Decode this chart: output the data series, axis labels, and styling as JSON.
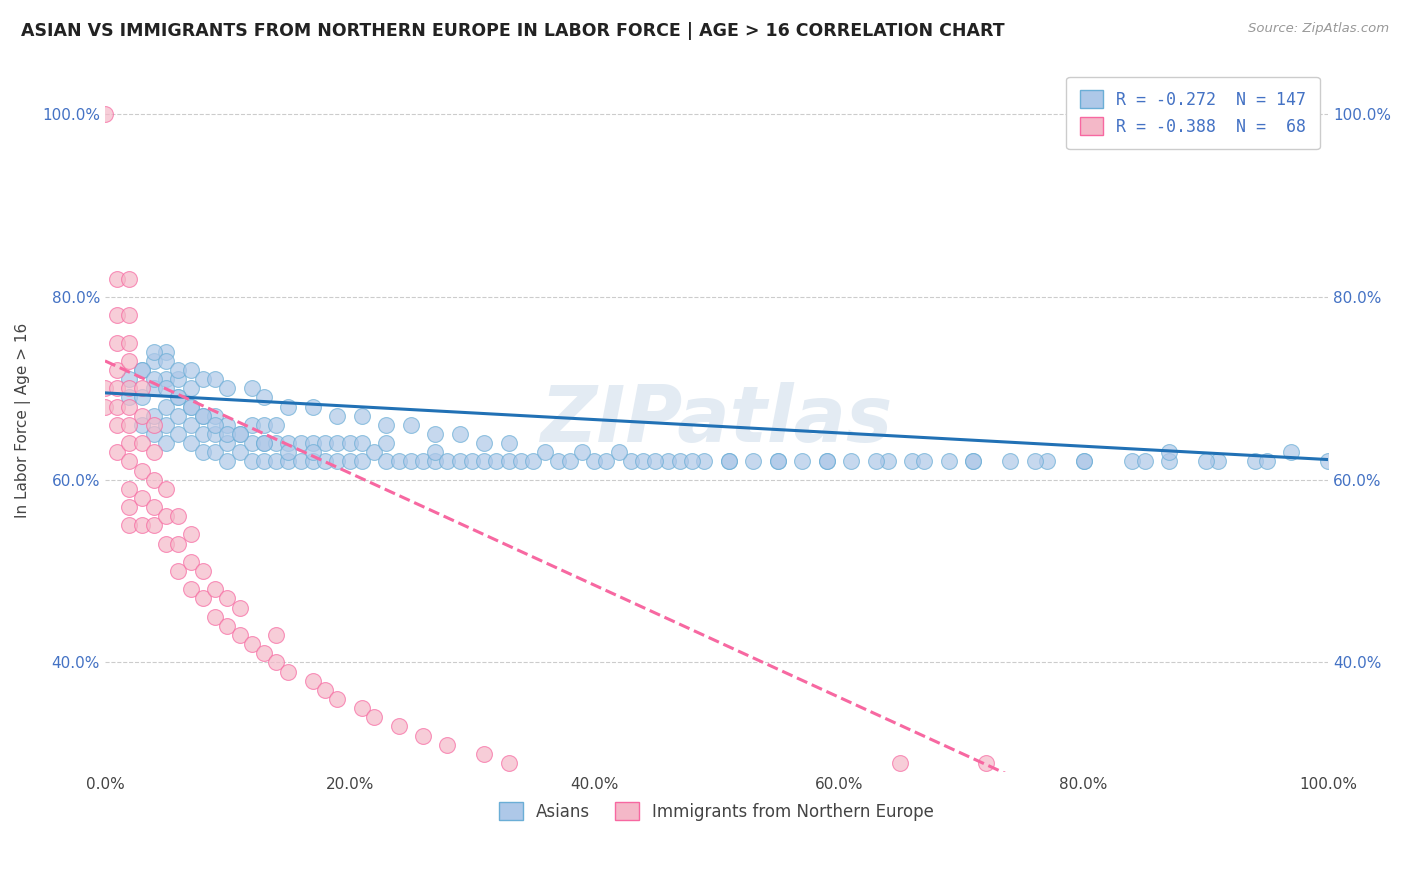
{
  "title": "ASIAN VS IMMIGRANTS FROM NORTHERN EUROPE IN LABOR FORCE | AGE > 16 CORRELATION CHART",
  "source": "Source: ZipAtlas.com",
  "ylabel": "In Labor Force | Age > 16",
  "xlim": [
    0.0,
    1.0
  ],
  "ylim": [
    0.28,
    1.05
  ],
  "x_ticks": [
    0.0,
    0.2,
    0.4,
    0.6,
    0.8,
    1.0
  ],
  "x_tick_labels": [
    "0.0%",
    "20.0%",
    "40.0%",
    "60.0%",
    "80.0%",
    "100.0%"
  ],
  "y_tick_labels": [
    "40.0%",
    "60.0%",
    "80.0%",
    "100.0%"
  ],
  "y_ticks": [
    0.4,
    0.6,
    0.8,
    1.0
  ],
  "blue_R": "-0.272",
  "blue_N": "147",
  "pink_R": "-0.388",
  "pink_N": " 68",
  "blue_color": "#aec8e8",
  "pink_color": "#f4b8c8",
  "blue_edge_color": "#6baed6",
  "pink_edge_color": "#f768a1",
  "blue_line_color": "#2171b5",
  "pink_line_color": "#f768a1",
  "watermark": "ZIPatlas",
  "legend_labels": [
    "Asians",
    "Immigrants from Northern Europe"
  ],
  "background_color": "#ffffff",
  "grid_color": "#cccccc",
  "blue_scatter_x": [
    0.02,
    0.02,
    0.03,
    0.03,
    0.03,
    0.04,
    0.04,
    0.04,
    0.04,
    0.05,
    0.05,
    0.05,
    0.05,
    0.05,
    0.06,
    0.06,
    0.06,
    0.06,
    0.07,
    0.07,
    0.07,
    0.07,
    0.08,
    0.08,
    0.08,
    0.09,
    0.09,
    0.09,
    0.1,
    0.1,
    0.1,
    0.11,
    0.11,
    0.12,
    0.12,
    0.12,
    0.13,
    0.13,
    0.13,
    0.14,
    0.14,
    0.14,
    0.15,
    0.15,
    0.16,
    0.16,
    0.17,
    0.17,
    0.18,
    0.18,
    0.19,
    0.19,
    0.2,
    0.2,
    0.21,
    0.21,
    0.22,
    0.23,
    0.23,
    0.24,
    0.25,
    0.26,
    0.27,
    0.27,
    0.28,
    0.29,
    0.3,
    0.31,
    0.32,
    0.33,
    0.34,
    0.35,
    0.37,
    0.38,
    0.4,
    0.41,
    0.43,
    0.44,
    0.46,
    0.47,
    0.49,
    0.51,
    0.53,
    0.55,
    0.57,
    0.59,
    0.61,
    0.64,
    0.66,
    0.69,
    0.71,
    0.74,
    0.77,
    0.8,
    0.84,
    0.87,
    0.87,
    0.91,
    0.94,
    0.97,
    0.04,
    0.05,
    0.06,
    0.07,
    0.08,
    0.09,
    0.1,
    0.12,
    0.13,
    0.15,
    0.17,
    0.19,
    0.21,
    0.23,
    0.25,
    0.27,
    0.29,
    0.31,
    0.33,
    0.36,
    0.39,
    0.42,
    0.45,
    0.48,
    0.51,
    0.55,
    0.59,
    0.63,
    0.67,
    0.71,
    0.76,
    0.8,
    0.85,
    0.9,
    0.95,
    1.0,
    0.03,
    0.04,
    0.05,
    0.06,
    0.07,
    0.08,
    0.09,
    0.1,
    0.11,
    0.13,
    0.15,
    0.17
  ],
  "blue_scatter_y": [
    0.69,
    0.71,
    0.66,
    0.69,
    0.72,
    0.65,
    0.67,
    0.7,
    0.73,
    0.64,
    0.66,
    0.68,
    0.71,
    0.74,
    0.65,
    0.67,
    0.69,
    0.71,
    0.64,
    0.66,
    0.68,
    0.7,
    0.63,
    0.65,
    0.67,
    0.63,
    0.65,
    0.67,
    0.62,
    0.64,
    0.66,
    0.63,
    0.65,
    0.62,
    0.64,
    0.66,
    0.62,
    0.64,
    0.66,
    0.62,
    0.64,
    0.66,
    0.62,
    0.64,
    0.62,
    0.64,
    0.62,
    0.64,
    0.62,
    0.64,
    0.62,
    0.64,
    0.62,
    0.64,
    0.62,
    0.64,
    0.63,
    0.62,
    0.64,
    0.62,
    0.62,
    0.62,
    0.62,
    0.63,
    0.62,
    0.62,
    0.62,
    0.62,
    0.62,
    0.62,
    0.62,
    0.62,
    0.62,
    0.62,
    0.62,
    0.62,
    0.62,
    0.62,
    0.62,
    0.62,
    0.62,
    0.62,
    0.62,
    0.62,
    0.62,
    0.62,
    0.62,
    0.62,
    0.62,
    0.62,
    0.62,
    0.62,
    0.62,
    0.62,
    0.62,
    0.62,
    0.63,
    0.62,
    0.62,
    0.63,
    0.74,
    0.73,
    0.72,
    0.72,
    0.71,
    0.71,
    0.7,
    0.7,
    0.69,
    0.68,
    0.68,
    0.67,
    0.67,
    0.66,
    0.66,
    0.65,
    0.65,
    0.64,
    0.64,
    0.63,
    0.63,
    0.63,
    0.62,
    0.62,
    0.62,
    0.62,
    0.62,
    0.62,
    0.62,
    0.62,
    0.62,
    0.62,
    0.62,
    0.62,
    0.62,
    0.62,
    0.72,
    0.71,
    0.7,
    0.69,
    0.68,
    0.67,
    0.66,
    0.65,
    0.65,
    0.64,
    0.63,
    0.63
  ],
  "pink_scatter_x": [
    0.0,
    0.0,
    0.0,
    0.01,
    0.01,
    0.01,
    0.01,
    0.01,
    0.01,
    0.01,
    0.01,
    0.02,
    0.02,
    0.02,
    0.02,
    0.02,
    0.02,
    0.02,
    0.02,
    0.02,
    0.02,
    0.02,
    0.02,
    0.03,
    0.03,
    0.03,
    0.03,
    0.03,
    0.03,
    0.04,
    0.04,
    0.04,
    0.04,
    0.04,
    0.05,
    0.05,
    0.05,
    0.06,
    0.06,
    0.06,
    0.07,
    0.07,
    0.07,
    0.08,
    0.08,
    0.09,
    0.09,
    0.1,
    0.1,
    0.11,
    0.11,
    0.12,
    0.13,
    0.14,
    0.14,
    0.15,
    0.17,
    0.18,
    0.19,
    0.21,
    0.22,
    0.24,
    0.26,
    0.28,
    0.31,
    0.33,
    0.65,
    0.72
  ],
  "pink_scatter_y": [
    0.68,
    0.7,
    1.0,
    0.63,
    0.66,
    0.68,
    0.7,
    0.72,
    0.75,
    0.78,
    0.82,
    0.55,
    0.57,
    0.59,
    0.62,
    0.64,
    0.66,
    0.68,
    0.7,
    0.73,
    0.75,
    0.78,
    0.82,
    0.55,
    0.58,
    0.61,
    0.64,
    0.67,
    0.7,
    0.55,
    0.57,
    0.6,
    0.63,
    0.66,
    0.53,
    0.56,
    0.59,
    0.5,
    0.53,
    0.56,
    0.48,
    0.51,
    0.54,
    0.47,
    0.5,
    0.45,
    0.48,
    0.44,
    0.47,
    0.43,
    0.46,
    0.42,
    0.41,
    0.4,
    0.43,
    0.39,
    0.38,
    0.37,
    0.36,
    0.35,
    0.34,
    0.33,
    0.32,
    0.31,
    0.3,
    0.29,
    0.29,
    0.29
  ],
  "blue_line_x": [
    0.0,
    1.0
  ],
  "blue_line_y": [
    0.695,
    0.622
  ],
  "pink_line_x": [
    0.0,
    0.75
  ],
  "pink_line_y": [
    0.73,
    0.27
  ]
}
